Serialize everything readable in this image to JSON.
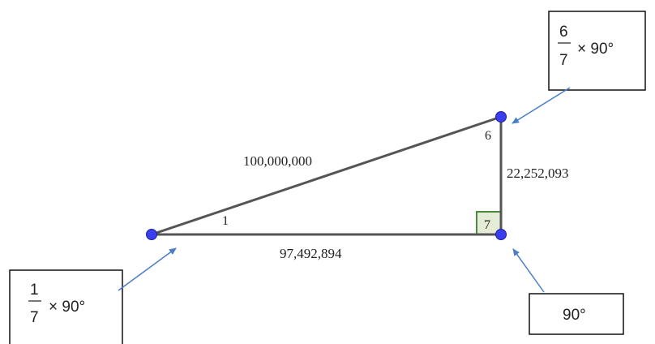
{
  "triangle": {
    "hypotenuse": "100,000,000",
    "adjacent": "97,492,894",
    "opposite": "22,252,093",
    "angle_left": "1",
    "angle_top": "6",
    "angle_right": "7"
  },
  "callouts": {
    "top_right": {
      "numerator": "6",
      "denominator": "7",
      "rest": "× 90°"
    },
    "bottom_left": {
      "numerator": "1",
      "denominator": "7",
      "rest": "× 90°"
    },
    "bottom_right": {
      "text": "90°"
    }
  },
  "colors": {
    "line": "#555555",
    "vertex": "#3a3ef0",
    "arrow": "#4a7fc8",
    "right_angle_box": "#4a8a3a",
    "right_angle_fill": "#e4ecd8"
  }
}
